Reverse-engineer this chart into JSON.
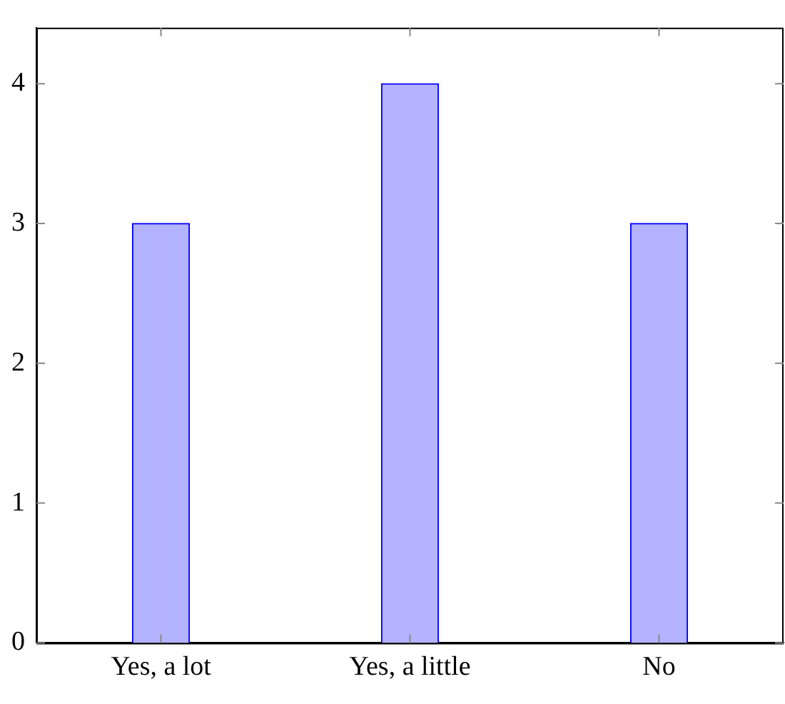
{
  "chart_data": {
    "type": "bar",
    "categories": [
      "Yes, a lot",
      "Yes, a little",
      "No"
    ],
    "values": [
      3,
      4,
      3
    ],
    "color": "#b3b3ff",
    "ylim": [
      0,
      4.4
    ],
    "yticks": [
      0,
      1,
      2,
      3,
      4
    ],
    "grid": false,
    "legend": false
  }
}
